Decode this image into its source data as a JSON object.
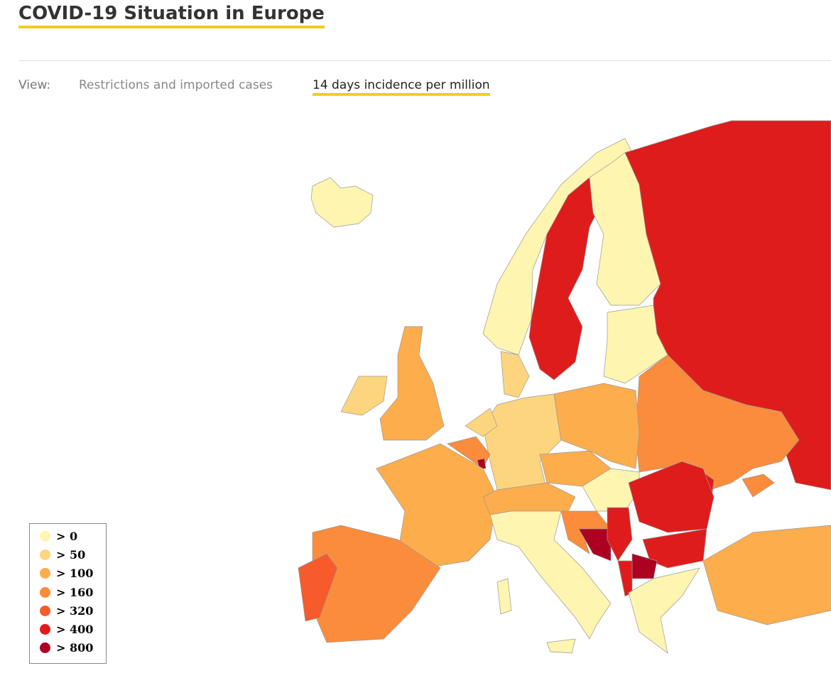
{
  "header": {
    "title": "COVID-19 Situation in Europe"
  },
  "view": {
    "label": "View:",
    "tabs": [
      "Restrictions and imported cases",
      "14 days incidence per million"
    ],
    "active_tab": 1
  },
  "legend": {
    "items": [
      {
        "label": "> 0",
        "color": "#fdf5b0"
      },
      {
        "label": "> 50",
        "color": "#fdd57e"
      },
      {
        "label": "> 100",
        "color": "#fdad4c"
      },
      {
        "label": "> 160",
        "color": "#fb8c3c"
      },
      {
        "label": "> 320",
        "color": "#f75a2b"
      },
      {
        "label": "> 400",
        "color": "#df1c1c"
      },
      {
        "label": "> 800",
        "color": "#ae0021"
      }
    ]
  }
}
